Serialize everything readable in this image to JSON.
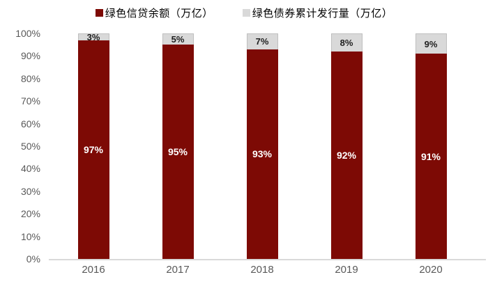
{
  "chart_data": {
    "type": "bar",
    "variant": "stacked-100-percent",
    "title": "",
    "categories": [
      "2016",
      "2017",
      "2018",
      "2019",
      "2020"
    ],
    "series": [
      {
        "name": "绿色信贷余额（万亿）",
        "color": "#7d0a05",
        "values": [
          97,
          95,
          93,
          92,
          91
        ],
        "data_labels": [
          "97%",
          "95%",
          "93%",
          "92%",
          "91%"
        ],
        "label_color": "#ffffff"
      },
      {
        "name": "绿色债券累计发行量（万亿）",
        "color": "#d9d9d9",
        "values": [
          3,
          5,
          7,
          8,
          9
        ],
        "data_labels": [
          "3%",
          "5%",
          "7%",
          "8%",
          "9%"
        ],
        "label_color": "#1f1f1f"
      }
    ],
    "y_axis": {
      "min": 0,
      "max": 100,
      "tick_step": 10,
      "tick_labels": [
        "0%",
        "10%",
        "20%",
        "30%",
        "40%",
        "50%",
        "60%",
        "70%",
        "80%",
        "90%",
        "100%"
      ],
      "label_color": "#595959"
    },
    "x_axis": {
      "labels": [
        "2016",
        "2017",
        "2018",
        "2019",
        "2020"
      ],
      "label_color": "#595959"
    },
    "legend_position": "top-center",
    "grid": false,
    "axis_line_color": "#d9d9d9"
  }
}
